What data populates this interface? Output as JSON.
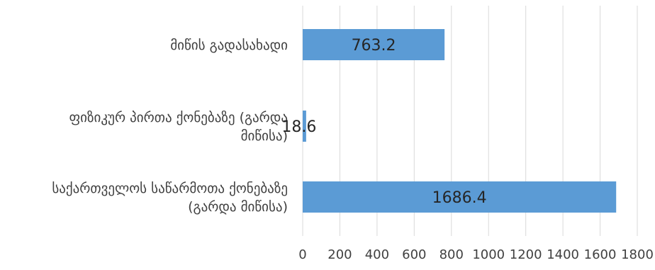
{
  "chart_data": {
    "type": "bar",
    "orientation": "horizontal",
    "categories": [
      "მიწის გადასახადი",
      "ფიზიკურ პირთა ქონებაზე (გარდა მიწისა)",
      "საქართველოს საწარმოთა ქონებაზე (გარდა მიწისა)"
    ],
    "category_lines": [
      [
        "მიწის გადასახადი"
      ],
      [
        "ფიზიკურ პირთა ქონებაზე (გარდა",
        "მიწისა)"
      ],
      [
        "საქართველოს საწარმოთა ქონებაზე",
        "(გარდა მიწისა)"
      ]
    ],
    "values": [
      763.2,
      18.6,
      1686.4
    ],
    "data_labels": [
      "763.2",
      "18.6",
      "1686.4"
    ],
    "xlim": [
      0,
      1800
    ],
    "xticks": [
      "0",
      "200",
      "400",
      "600",
      "800",
      "1000",
      "1200",
      "1400",
      "1600",
      "1800"
    ],
    "grid": true,
    "legend": "none",
    "bar_color": "#5b9bd5",
    "title": "",
    "xlabel": "",
    "ylabel": ""
  }
}
